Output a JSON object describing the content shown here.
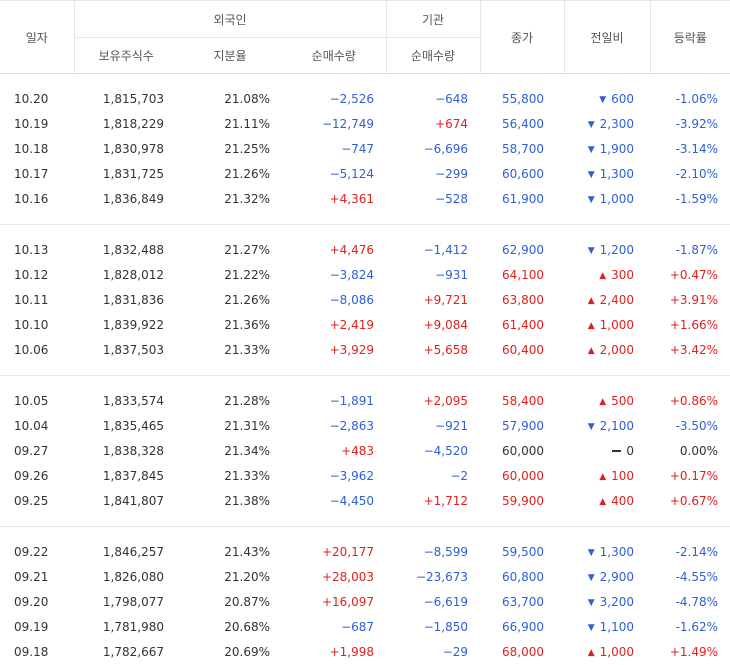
{
  "header": {
    "date": "일자",
    "foreign": "외국인",
    "institution": "기관",
    "holding": "보유주식수",
    "ratio": "지분율",
    "net_foreign": "순매수량",
    "net_inst": "순매수량",
    "close": "종가",
    "change": "전일비",
    "rate": "등락률"
  },
  "colors": {
    "up": "#e02020",
    "down": "#2d5fd5"
  },
  "groups": [
    [
      {
        "date": "10.20",
        "holding": "1,815,703",
        "ratio": "21.08%",
        "fnet": "−2,526",
        "fdir": "down",
        "inet": "−648",
        "idir": "down",
        "close": "55,800",
        "cdir": "down",
        "change": "600",
        "chdir": "down",
        "rate": "-1.06%",
        "rdir": "down"
      },
      {
        "date": "10.19",
        "holding": "1,818,229",
        "ratio": "21.11%",
        "fnet": "−12,749",
        "fdir": "down",
        "inet": "+674",
        "idir": "up",
        "close": "56,400",
        "cdir": "down",
        "change": "2,300",
        "chdir": "down",
        "rate": "-3.92%",
        "rdir": "down"
      },
      {
        "date": "10.18",
        "holding": "1,830,978",
        "ratio": "21.25%",
        "fnet": "−747",
        "fdir": "down",
        "inet": "−6,696",
        "idir": "down",
        "close": "58,700",
        "cdir": "down",
        "change": "1,900",
        "chdir": "down",
        "rate": "-3.14%",
        "rdir": "down"
      },
      {
        "date": "10.17",
        "holding": "1,831,725",
        "ratio": "21.26%",
        "fnet": "−5,124",
        "fdir": "down",
        "inet": "−299",
        "idir": "down",
        "close": "60,600",
        "cdir": "down",
        "change": "1,300",
        "chdir": "down",
        "rate": "-2.10%",
        "rdir": "down"
      },
      {
        "date": "10.16",
        "holding": "1,836,849",
        "ratio": "21.32%",
        "fnet": "+4,361",
        "fdir": "up",
        "inet": "−528",
        "idir": "down",
        "close": "61,900",
        "cdir": "down",
        "change": "1,000",
        "chdir": "down",
        "rate": "-1.59%",
        "rdir": "down"
      }
    ],
    [
      {
        "date": "10.13",
        "holding": "1,832,488",
        "ratio": "21.27%",
        "fnet": "+4,476",
        "fdir": "up",
        "inet": "−1,412",
        "idir": "down",
        "close": "62,900",
        "cdir": "down",
        "change": "1,200",
        "chdir": "down",
        "rate": "-1.87%",
        "rdir": "down"
      },
      {
        "date": "10.12",
        "holding": "1,828,012",
        "ratio": "21.22%",
        "fnet": "−3,824",
        "fdir": "down",
        "inet": "−931",
        "idir": "down",
        "close": "64,100",
        "cdir": "up",
        "change": "300",
        "chdir": "up",
        "rate": "+0.47%",
        "rdir": "up"
      },
      {
        "date": "10.11",
        "holding": "1,831,836",
        "ratio": "21.26%",
        "fnet": "−8,086",
        "fdir": "down",
        "inet": "+9,721",
        "idir": "up",
        "close": "63,800",
        "cdir": "up",
        "change": "2,400",
        "chdir": "up",
        "rate": "+3.91%",
        "rdir": "up"
      },
      {
        "date": "10.10",
        "holding": "1,839,922",
        "ratio": "21.36%",
        "fnet": "+2,419",
        "fdir": "up",
        "inet": "+9,084",
        "idir": "up",
        "close": "61,400",
        "cdir": "up",
        "change": "1,000",
        "chdir": "up",
        "rate": "+1.66%",
        "rdir": "up"
      },
      {
        "date": "10.06",
        "holding": "1,837,503",
        "ratio": "21.33%",
        "fnet": "+3,929",
        "fdir": "up",
        "inet": "+5,658",
        "idir": "up",
        "close": "60,400",
        "cdir": "up",
        "change": "2,000",
        "chdir": "up",
        "rate": "+3.42%",
        "rdir": "up"
      }
    ],
    [
      {
        "date": "10.05",
        "holding": "1,833,574",
        "ratio": "21.28%",
        "fnet": "−1,891",
        "fdir": "down",
        "inet": "+2,095",
        "idir": "up",
        "close": "58,400",
        "cdir": "up",
        "change": "500",
        "chdir": "up",
        "rate": "+0.86%",
        "rdir": "up"
      },
      {
        "date": "10.04",
        "holding": "1,835,465",
        "ratio": "21.31%",
        "fnet": "−2,863",
        "fdir": "down",
        "inet": "−921",
        "idir": "down",
        "close": "57,900",
        "cdir": "down",
        "change": "2,100",
        "chdir": "down",
        "rate": "-3.50%",
        "rdir": "down"
      },
      {
        "date": "09.27",
        "holding": "1,838,328",
        "ratio": "21.34%",
        "fnet": "+483",
        "fdir": "up",
        "inet": "−4,520",
        "idir": "down",
        "close": "60,000",
        "cdir": "flat",
        "change": "0",
        "chdir": "flat",
        "rate": "0.00%",
        "rdir": "flat"
      },
      {
        "date": "09.26",
        "holding": "1,837,845",
        "ratio": "21.33%",
        "fnet": "−3,962",
        "fdir": "down",
        "inet": "−2",
        "idir": "down",
        "close": "60,000",
        "cdir": "up",
        "change": "100",
        "chdir": "up",
        "rate": "+0.17%",
        "rdir": "up"
      },
      {
        "date": "09.25",
        "holding": "1,841,807",
        "ratio": "21.38%",
        "fnet": "−4,450",
        "fdir": "down",
        "inet": "+1,712",
        "idir": "up",
        "close": "59,900",
        "cdir": "up",
        "change": "400",
        "chdir": "up",
        "rate": "+0.67%",
        "rdir": "up"
      }
    ],
    [
      {
        "date": "09.22",
        "holding": "1,846,257",
        "ratio": "21.43%",
        "fnet": "+20,177",
        "fdir": "up",
        "inet": "−8,599",
        "idir": "down",
        "close": "59,500",
        "cdir": "down",
        "change": "1,300",
        "chdir": "down",
        "rate": "-2.14%",
        "rdir": "down"
      },
      {
        "date": "09.21",
        "holding": "1,826,080",
        "ratio": "21.20%",
        "fnet": "+28,003",
        "fdir": "up",
        "inet": "−23,673",
        "idir": "down",
        "close": "60,800",
        "cdir": "down",
        "change": "2,900",
        "chdir": "down",
        "rate": "-4.55%",
        "rdir": "down"
      },
      {
        "date": "09.20",
        "holding": "1,798,077",
        "ratio": "20.87%",
        "fnet": "+16,097",
        "fdir": "up",
        "inet": "−6,619",
        "idir": "down",
        "close": "63,700",
        "cdir": "down",
        "change": "3,200",
        "chdir": "down",
        "rate": "-4.78%",
        "rdir": "down"
      },
      {
        "date": "09.19",
        "holding": "1,781,980",
        "ratio": "20.68%",
        "fnet": "−687",
        "fdir": "down",
        "inet": "−1,850",
        "idir": "down",
        "close": "66,900",
        "cdir": "down",
        "change": "1,100",
        "chdir": "down",
        "rate": "-1.62%",
        "rdir": "down"
      },
      {
        "date": "09.18",
        "holding": "1,782,667",
        "ratio": "20.69%",
        "fnet": "+1,998",
        "fdir": "up",
        "inet": "−29",
        "idir": "down",
        "close": "68,000",
        "cdir": "up",
        "change": "1,000",
        "chdir": "up",
        "rate": "+1.49%",
        "rdir": "up"
      }
    ]
  ]
}
